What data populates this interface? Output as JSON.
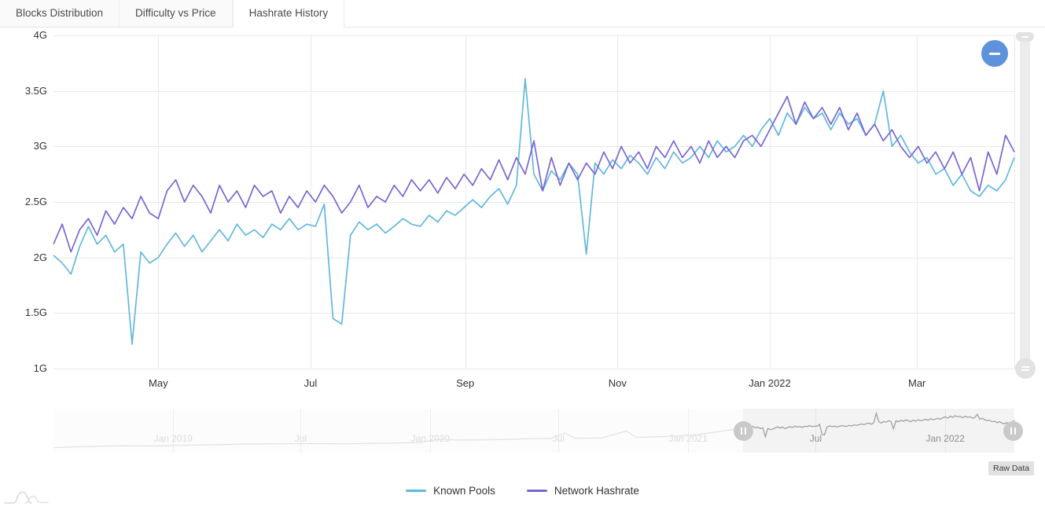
{
  "panel_title": "Hashrate History",
  "tabs": [
    {
      "label": "Blocks Distribution",
      "active": false
    },
    {
      "label": "Difficulty vs Price",
      "active": false
    },
    {
      "label": "Hashrate History",
      "active": true
    }
  ],
  "controls": {
    "zoom_out_label": "−",
    "raw_data_label": "Raw Data"
  },
  "colors": {
    "known_pools": "#62b8dc",
    "network_hashrate": "#7a66d2",
    "gridline": "#e9e9e9",
    "nav_line_faded": "#e2e2e2",
    "nav_line_selected": "#a0a0a0",
    "zoom_button": "#5e92da"
  },
  "chart_data": {
    "type": "line",
    "title": "Hashrate History",
    "y_unit": "G",
    "ylim": [
      1,
      4
    ],
    "grid": true,
    "legend_position": "bottom",
    "x_start_date": "2021-03-20",
    "x_end_date": "2022-04-09",
    "x_interval_days": 3.5,
    "x_note": "both series sampled uniformly every 3.5 days from x_start_date",
    "y_axis": {
      "ticks": [
        {
          "label": "4G",
          "value": 4
        },
        {
          "label": "3.5G",
          "value": 3.5
        },
        {
          "label": "3G",
          "value": 3
        },
        {
          "label": "2.5G",
          "value": 2.5
        },
        {
          "label": "2G",
          "value": 2
        },
        {
          "label": "1.5G",
          "value": 1.5
        },
        {
          "label": "1G",
          "value": 1
        }
      ]
    },
    "x_axis": {
      "ticks": [
        {
          "label": "May",
          "date": "2021-05-01"
        },
        {
          "label": "Jul",
          "date": "2021-07-01"
        },
        {
          "label": "Sep",
          "date": "2021-09-01"
        },
        {
          "label": "Nov",
          "date": "2021-11-01"
        },
        {
          "label": "Jan 2022",
          "date": "2022-01-01"
        },
        {
          "label": "Mar",
          "date": "2022-03-01"
        }
      ]
    },
    "series": [
      {
        "name": "Known Pools",
        "color": "#62b8dc",
        "values": [
          2.02,
          1.95,
          1.85,
          2.1,
          2.28,
          2.12,
          2.2,
          2.05,
          2.12,
          1.22,
          2.05,
          1.95,
          2.0,
          2.12,
          2.22,
          2.1,
          2.2,
          2.05,
          2.15,
          2.25,
          2.15,
          2.3,
          2.2,
          2.25,
          2.18,
          2.3,
          2.25,
          2.35,
          2.25,
          2.3,
          2.28,
          2.48,
          1.45,
          1.4,
          2.2,
          2.32,
          2.25,
          2.3,
          2.22,
          2.28,
          2.35,
          2.3,
          2.28,
          2.38,
          2.32,
          2.42,
          2.38,
          2.45,
          2.52,
          2.45,
          2.55,
          2.62,
          2.48,
          2.65,
          3.61,
          2.75,
          2.6,
          2.78,
          2.7,
          2.85,
          2.75,
          2.03,
          2.85,
          2.75,
          2.88,
          2.8,
          2.92,
          2.85,
          2.75,
          2.9,
          2.8,
          2.95,
          2.85,
          2.9,
          3.0,
          2.9,
          3.05,
          2.95,
          3.0,
          3.1,
          3.0,
          3.15,
          3.25,
          3.1,
          3.3,
          3.2,
          3.35,
          3.25,
          3.3,
          3.15,
          3.3,
          3.2,
          3.25,
          3.1,
          3.2,
          3.5,
          3.0,
          3.1,
          2.95,
          2.85,
          2.9,
          2.75,
          2.8,
          2.65,
          2.75,
          2.6,
          2.55,
          2.65,
          2.6,
          2.7,
          2.9
        ]
      },
      {
        "name": "Network Hashrate",
        "color": "#7a66d2",
        "values": [
          2.12,
          2.3,
          2.05,
          2.25,
          2.35,
          2.2,
          2.42,
          2.3,
          2.45,
          2.35,
          2.55,
          2.4,
          2.35,
          2.6,
          2.7,
          2.5,
          2.65,
          2.55,
          2.4,
          2.65,
          2.5,
          2.6,
          2.45,
          2.65,
          2.55,
          2.6,
          2.4,
          2.55,
          2.45,
          2.6,
          2.5,
          2.65,
          2.55,
          2.4,
          2.5,
          2.65,
          2.45,
          2.55,
          2.5,
          2.65,
          2.55,
          2.7,
          2.6,
          2.7,
          2.58,
          2.72,
          2.62,
          2.75,
          2.65,
          2.8,
          2.7,
          2.88,
          2.7,
          2.9,
          2.75,
          3.05,
          2.6,
          2.9,
          2.65,
          2.85,
          2.7,
          2.85,
          2.75,
          2.95,
          2.8,
          3.0,
          2.85,
          2.95,
          2.8,
          3.0,
          2.9,
          3.05,
          2.9,
          3.0,
          2.85,
          3.05,
          2.9,
          3.0,
          2.9,
          3.05,
          3.1,
          3.0,
          3.15,
          3.3,
          3.45,
          3.2,
          3.4,
          3.25,
          3.35,
          3.2,
          3.35,
          3.15,
          3.3,
          3.1,
          3.2,
          3.05,
          3.15,
          3.0,
          2.9,
          3.0,
          2.85,
          2.95,
          2.8,
          2.95,
          2.75,
          2.9,
          2.6,
          2.95,
          2.75,
          3.1,
          2.95
        ]
      }
    ]
  },
  "navigator": {
    "range_start": "2018-07-15",
    "range_end": "2022-04-09",
    "selection_start": "2021-03-20",
    "selection_end": "2022-04-09",
    "vmax": 3.6,
    "labels": [
      {
        "label": "Jan 2019",
        "date": "2019-01-01"
      },
      {
        "label": "Jul",
        "date": "2019-07-01"
      },
      {
        "label": "Jan 2020",
        "date": "2020-01-01"
      },
      {
        "label": "Jul",
        "date": "2020-07-01"
      },
      {
        "label": "Jan 2021",
        "date": "2021-01-01"
      },
      {
        "label": "Jul",
        "date": "2021-07-01"
      },
      {
        "label": "Jan 2022",
        "date": "2022-01-01"
      }
    ],
    "history": [
      [
        "2018-07-15",
        0.12
      ],
      [
        "2018-09-01",
        0.22
      ],
      [
        "2018-10-15",
        0.3
      ],
      [
        "2018-12-01",
        0.28
      ],
      [
        "2019-01-15",
        0.35
      ],
      [
        "2019-03-01",
        0.4
      ],
      [
        "2019-04-15",
        0.48
      ],
      [
        "2019-06-01",
        0.5
      ],
      [
        "2019-07-15",
        0.52
      ],
      [
        "2019-09-01",
        0.5
      ],
      [
        "2019-10-15",
        0.55
      ],
      [
        "2019-12-01",
        0.6
      ],
      [
        "2019-12-20",
        0.65
      ],
      [
        "2020-01-10",
        0.95
      ],
      [
        "2020-02-15",
        0.88
      ],
      [
        "2020-04-01",
        0.92
      ],
      [
        "2020-05-15",
        1.0
      ],
      [
        "2020-06-20",
        1.05
      ],
      [
        "2020-07-10",
        1.6
      ],
      [
        "2020-07-25",
        1.05
      ],
      [
        "2020-09-01",
        1.1
      ],
      [
        "2020-10-05",
        1.8
      ],
      [
        "2020-10-20",
        1.15
      ],
      [
        "2020-12-01",
        1.25
      ],
      [
        "2021-01-10",
        1.4
      ],
      [
        "2021-02-10",
        1.7
      ],
      [
        "2021-03-10",
        2.0
      ],
      [
        "2021-03-20",
        2.02
      ]
    ]
  },
  "legend": [
    {
      "label": "Known Pools"
    },
    {
      "label": "Network Hashrate"
    }
  ]
}
